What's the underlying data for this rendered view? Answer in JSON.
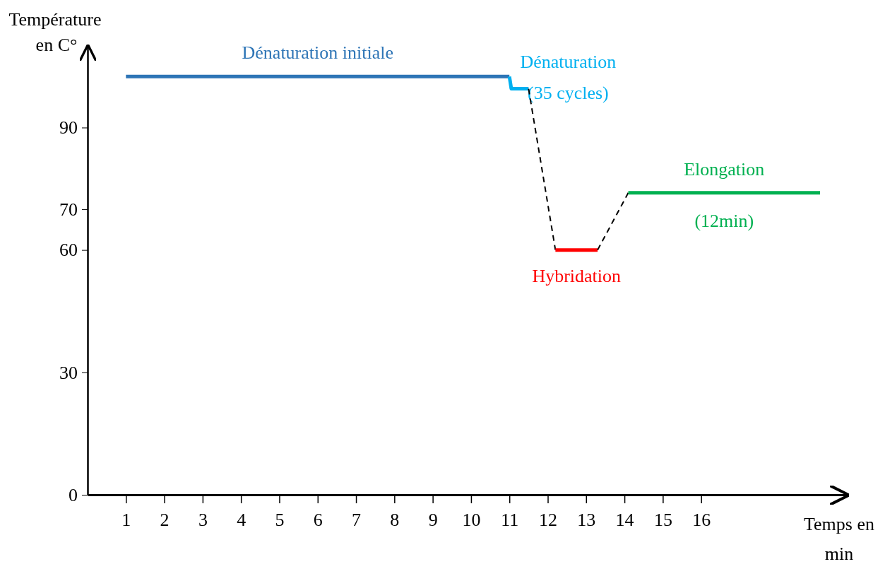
{
  "chart_data": {
    "type": "line",
    "xlabel": "Temps en min",
    "ylabel": "Température en C°",
    "xlim": [
      0,
      19.8
    ],
    "ylim": [
      0,
      110
    ],
    "xticks": [
      1,
      2,
      3,
      4,
      5,
      6,
      7,
      8,
      9,
      10,
      11,
      12,
      13,
      14,
      15,
      16
    ],
    "yticks": [
      0,
      30,
      60,
      70,
      90
    ],
    "marker": "none",
    "series": [
      {
        "name": "Dénaturation initiale",
        "color": "#2e75b6",
        "x": [
          1,
          11
        ],
        "values": [
          102.5,
          102.5
        ]
      },
      {
        "name": "Dénaturation (35 cycles)",
        "color": "#00b0f0",
        "x": [
          11,
          11.05,
          11.5
        ],
        "values": [
          102.5,
          99.5,
          99.5
        ]
      },
      {
        "color": "#000000",
        "line_style": "dashed",
        "x": [
          11.5,
          12.2
        ],
        "values": [
          99.5,
          60
        ]
      },
      {
        "name": "Hybridation",
        "color": "#ff0000",
        "x": [
          12.2,
          13.3
        ],
        "values": [
          60,
          60
        ]
      },
      {
        "color": "#000000",
        "line_style": "dashed",
        "x": [
          13.3,
          14.1
        ],
        "values": [
          60,
          74
        ]
      },
      {
        "name": "Elongation",
        "color": "#00b050",
        "x": [
          14.1,
          19.1
        ],
        "values": [
          74,
          74
        ]
      }
    ],
    "annotations": [
      {
        "text": "(12min)",
        "x": 16.6,
        "y": 74
      }
    ]
  }
}
